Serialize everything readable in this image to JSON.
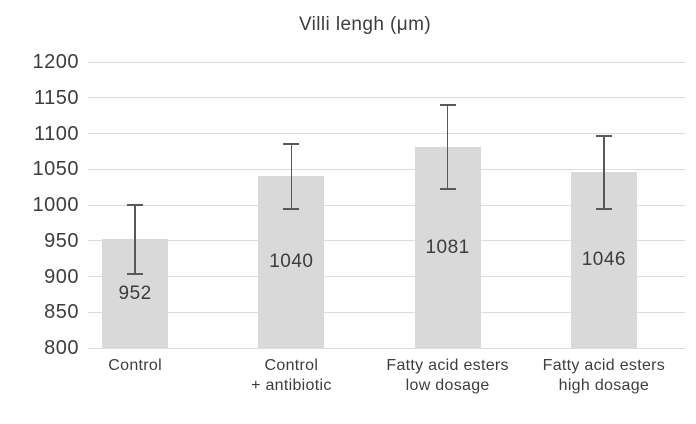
{
  "chart_data": {
    "type": "bar",
    "title": "Villi lengh (μm)",
    "categories": [
      "Control",
      "Control\n+ antibiotic",
      "Fatty acid esters\nlow dosage",
      "Fatty acid esters\nhigh dosage"
    ],
    "values": [
      952,
      1040,
      1081,
      1046
    ],
    "error_low": [
      904,
      994,
      1022,
      995
    ],
    "error_high": [
      1000,
      1086,
      1140,
      1097
    ],
    "data_labels": [
      "952",
      "1040",
      "1081",
      "1046"
    ],
    "ylim": [
      800,
      1200
    ],
    "yticks": [
      1200,
      1150,
      1100,
      1050,
      1000,
      950,
      900,
      850,
      800
    ],
    "xlabel": "",
    "ylabel": "",
    "grid": true,
    "legend": "none",
    "colors": {
      "bar_fill": "#d9d9d9",
      "error_bar": "#595959",
      "gridline": "#dcdcdc",
      "text": "#3d3d3d",
      "background": "#ffffff"
    }
  }
}
